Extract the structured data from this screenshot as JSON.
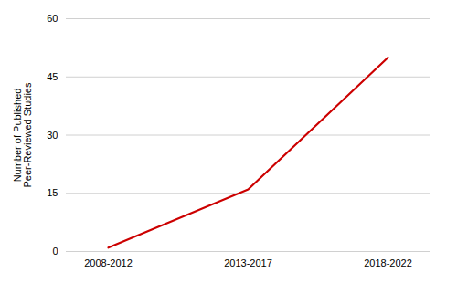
{
  "chart_data": {
    "type": "line",
    "categories": [
      "2008-2012",
      "2013-2017",
      "2018-2022"
    ],
    "values": [
      1,
      16,
      50
    ],
    "color": "#cc0000",
    "ylabel": "Number of Published\nPeer-Reviewed Studies",
    "ylim": [
      0,
      60
    ],
    "yticks": [
      0,
      15,
      30,
      45,
      60
    ],
    "grid": true
  }
}
